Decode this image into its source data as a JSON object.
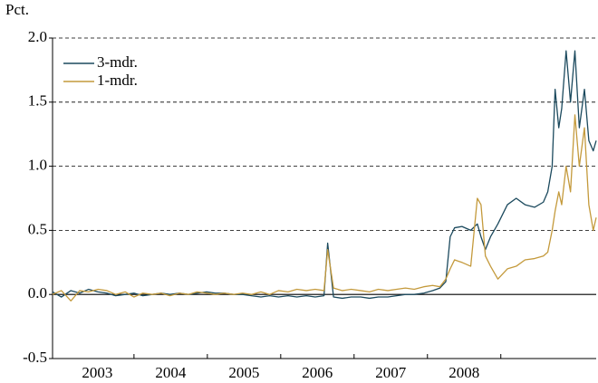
{
  "chart_data": {
    "type": "line",
    "y_axis_label": "Pct.",
    "xlim": [
      2002.89,
      2010.3
    ],
    "xticks": [
      2004,
      2005,
      2006,
      2007,
      2008,
      2009
    ],
    "xlabels": [
      {
        "value": 2003.5,
        "label": "2003"
      },
      {
        "value": 2004.5,
        "label": "2004"
      },
      {
        "value": 2005.5,
        "label": "2005"
      },
      {
        "value": 2006.5,
        "label": "2006"
      },
      {
        "value": 2007.5,
        "label": "2007"
      },
      {
        "value": 2008.5,
        "label": "2008"
      }
    ],
    "ylim": [
      -0.5,
      2.0
    ],
    "yticks": [
      {
        "value": -0.5,
        "label": "-0.5"
      },
      {
        "value": 0,
        "label": "0.0"
      },
      {
        "value": 0.5,
        "label": "0.5"
      },
      {
        "value": 1,
        "label": "1.0"
      },
      {
        "value": 1.5,
        "label": "1.5"
      },
      {
        "value": 2,
        "label": "2.0"
      }
    ],
    "grid": true,
    "legend": "upper left",
    "x": [
      2002.89,
      2003.01,
      2003.14,
      2003.26,
      2003.38,
      2003.51,
      2003.63,
      2003.75,
      2003.88,
      2004.0,
      2004.12,
      2004.25,
      2004.37,
      2004.49,
      2004.62,
      2004.74,
      2004.86,
      2004.99,
      2005.11,
      2005.23,
      2005.36,
      2005.48,
      2005.6,
      2005.73,
      2005.85,
      2005.97,
      2006.1,
      2006.22,
      2006.35,
      2006.47,
      2006.59,
      2006.64,
      2006.72,
      2006.84,
      2006.96,
      2007.09,
      2007.21,
      2007.33,
      2007.46,
      2007.58,
      2007.7,
      2007.82,
      2007.95,
      2008.07,
      2008.17,
      2008.25,
      2008.31,
      2008.37,
      2008.47,
      2008.59,
      2008.68,
      2008.73,
      2008.79,
      2008.86,
      2008.96,
      2009.09,
      2009.21,
      2009.33,
      2009.46,
      2009.58,
      2009.64,
      2009.7,
      2009.74,
      2009.79,
      2009.83,
      2009.89,
      2009.95,
      2010.01,
      2010.07,
      2010.14,
      2010.2,
      2010.26,
      2010.3
    ],
    "series": [
      {
        "name": "3-mdr.",
        "color": "#1c4a5e",
        "values": [
          0.02,
          -0.02,
          0.03,
          0.01,
          0.04,
          0.02,
          0.01,
          -0.01,
          0.0,
          0.01,
          -0.01,
          0.0,
          0.01,
          0.0,
          0.01,
          0.0,
          0.01,
          0.02,
          0.01,
          0.01,
          0.0,
          0.0,
          -0.01,
          -0.02,
          -0.01,
          -0.02,
          -0.01,
          -0.02,
          -0.01,
          -0.02,
          -0.01,
          0.4,
          -0.02,
          -0.03,
          -0.02,
          -0.02,
          -0.03,
          -0.02,
          -0.02,
          -0.01,
          0.0,
          0.0,
          0.01,
          0.03,
          0.05,
          0.1,
          0.45,
          0.52,
          0.53,
          0.5,
          0.55,
          0.45,
          0.35,
          0.45,
          0.55,
          0.7,
          0.75,
          0.7,
          0.68,
          0.72,
          0.8,
          1.0,
          1.6,
          1.3,
          1.45,
          1.9,
          1.5,
          1.9,
          1.3,
          1.6,
          1.2,
          1.12,
          1.2
        ]
      },
      {
        "name": "1-mdr.",
        "color": "#c49a3c",
        "values": [
          0.0,
          0.03,
          -0.05,
          0.03,
          0.02,
          0.04,
          0.03,
          0.0,
          0.02,
          -0.02,
          0.01,
          0.0,
          0.01,
          -0.01,
          0.01,
          0.0,
          0.02,
          0.01,
          0.0,
          0.01,
          0.0,
          0.01,
          0.0,
          0.02,
          0.0,
          0.03,
          0.02,
          0.04,
          0.03,
          0.04,
          0.03,
          0.35,
          0.05,
          0.03,
          0.04,
          0.03,
          0.02,
          0.04,
          0.03,
          0.04,
          0.05,
          0.04,
          0.06,
          0.07,
          0.06,
          0.12,
          0.2,
          0.27,
          0.25,
          0.22,
          0.75,
          0.7,
          0.3,
          0.22,
          0.12,
          0.2,
          0.22,
          0.27,
          0.28,
          0.3,
          0.33,
          0.5,
          0.65,
          0.8,
          0.7,
          1.0,
          0.8,
          1.4,
          1.0,
          1.3,
          0.7,
          0.5,
          0.6
        ]
      }
    ]
  }
}
